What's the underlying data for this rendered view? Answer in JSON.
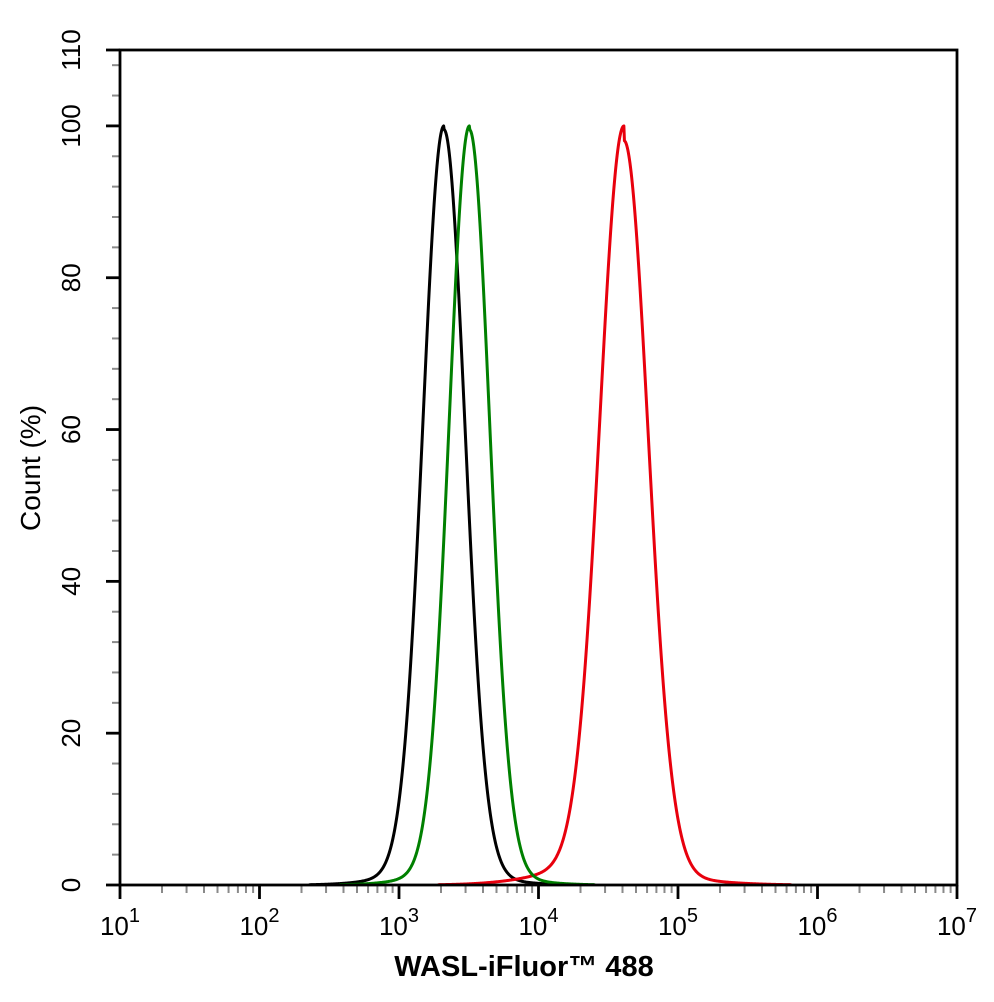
{
  "figure": {
    "background": "#ffffff",
    "axis_color": "#000000",
    "minor_tick_color": "#8a8a8a"
  },
  "chart_data": {
    "type": "line",
    "subtype": "flow-cytometry-histogram-overlay",
    "title": "",
    "xlabel": "WASL-iFluor™ 488",
    "ylabel": "Count (%)",
    "x_scale": "log10",
    "xlim_exponents": [
      1,
      7
    ],
    "x_tick_base": "10",
    "x_tick_exponents": [
      1,
      2,
      3,
      4,
      5,
      6,
      7
    ],
    "x_minor_ticks": "log decades 2-9",
    "ylim": [
      0,
      110
    ],
    "y_major_ticks": [
      0,
      20,
      40,
      60,
      80,
      100,
      110
    ],
    "y_minor_step": 4,
    "grid": false,
    "legend": "none",
    "series": [
      {
        "name": "black-curve",
        "color": "#000000",
        "peak_x": 2100,
        "peak_y": 100,
        "sigma_decades": 0.15,
        "tail_left": 0.02,
        "tail_right": 0.015,
        "tail_sigma_mult": 2.3
      },
      {
        "name": "red-curve",
        "color": "#e8000d",
        "peak_x": 41000,
        "peak_y": 100,
        "sigma_decades": 0.172,
        "tail_left": 0.035,
        "tail_right": 0.015,
        "tail_sigma_mult": 2.6
      },
      {
        "name": "green-curve",
        "color": "#008000",
        "peak_x": 3200,
        "peak_y": 100,
        "sigma_decades": 0.145,
        "tail_left": 0.02,
        "tail_right": 0.015,
        "tail_sigma_mult": 2.3
      }
    ]
  }
}
